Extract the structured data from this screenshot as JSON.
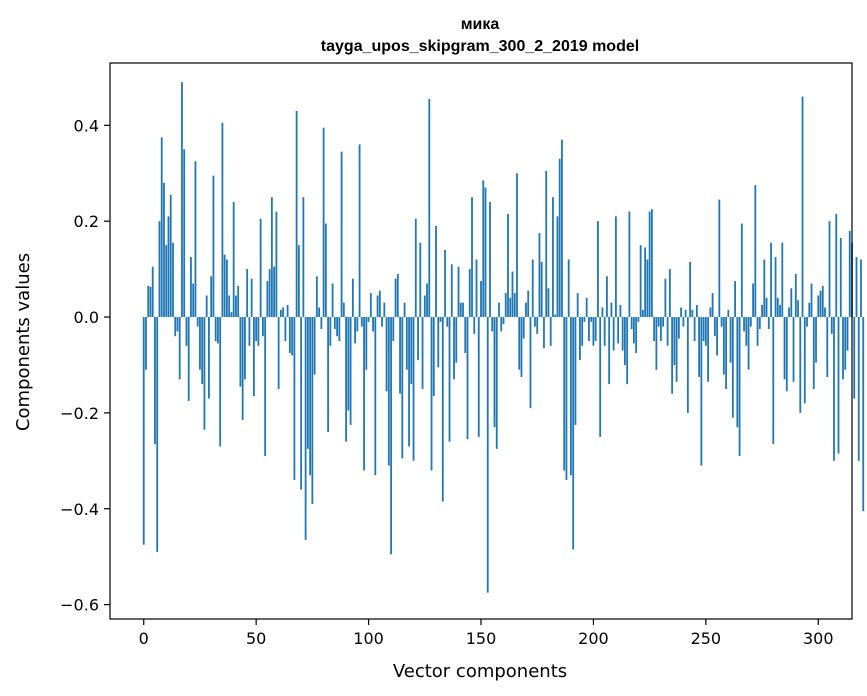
{
  "chart_data": {
    "type": "bar",
    "title": "мика",
    "subtitle": "tayga_upos_skipgram_300_2_2019 model",
    "xlabel": "Vector components",
    "ylabel": "Components values",
    "xlim": [
      -15,
      315
    ],
    "ylim": [
      -0.63,
      0.53
    ],
    "xticks": [
      0,
      50,
      100,
      150,
      200,
      250,
      300
    ],
    "yticks": [
      -0.6,
      -0.4,
      -0.2,
      0.0,
      0.2,
      0.4
    ],
    "ytick_labels": [
      "−0.6",
      "−0.4",
      "−0.2",
      "0.0",
      "0.2",
      "0.4"
    ],
    "xtick_labels": [
      "0",
      "50",
      "100",
      "150",
      "200",
      "250",
      "300"
    ],
    "bar_color": "#1f77b4",
    "values": [
      -0.475,
      -0.11,
      0.065,
      0.063,
      0.105,
      -0.265,
      -0.49,
      0.2,
      0.375,
      0.28,
      0.15,
      0.21,
      0.255,
      0.155,
      -0.04,
      -0.03,
      -0.13,
      0.49,
      0.35,
      -0.06,
      -0.175,
      0.125,
      0.07,
      0.325,
      -0.02,
      -0.11,
      -0.14,
      -0.235,
      0.045,
      -0.17,
      0.085,
      0.295,
      -0.05,
      -0.055,
      -0.27,
      0.405,
      0.13,
      0.12,
      0.045,
      0.01,
      0.24,
      0.045,
      0.065,
      -0.145,
      -0.215,
      -0.13,
      0.1,
      -0.06,
      0.08,
      -0.165,
      -0.05,
      -0.06,
      0.205,
      -0.04,
      -0.29,
      0.075,
      0.1,
      0.25,
      0.105,
      0.22,
      -0.15,
      0.015,
      0.02,
      -0.05,
      0.025,
      -0.075,
      -0.08,
      -0.34,
      0.43,
      0.15,
      -0.36,
      0.25,
      -0.465,
      -0.275,
      -0.33,
      -0.39,
      -0.12,
      0.085,
      0.02,
      -0.025,
      0.395,
      0.195,
      -0.24,
      -0.06,
      0.07,
      -0.025,
      -0.04,
      -0.05,
      0.345,
      0.03,
      -0.26,
      -0.195,
      -0.225,
      0.08,
      -0.055,
      -0.03,
      0.36,
      -0.02,
      -0.32,
      -0.11,
      -0.01,
      0.05,
      -0.03,
      -0.33,
      0.045,
      0.055,
      -0.02,
      0.03,
      -0.155,
      -0.31,
      -0.495,
      -0.05,
      0.08,
      0.09,
      -0.16,
      -0.295,
      0.03,
      -0.11,
      -0.27,
      -0.14,
      -0.3,
      0.205,
      -0.09,
      0.155,
      -0.15,
      0.045,
      0.07,
      0.455,
      -0.32,
      -0.165,
      0.19,
      -0.105,
      -0.01,
      -0.385,
      0.14,
      -0.02,
      -0.26,
      0.11,
      -0.13,
      -0.095,
      0.105,
      0.03,
      0.03,
      -0.075,
      -0.255,
      0.1,
      0.25,
      -0.035,
      0.12,
      -0.25,
      0.075,
      0.285,
      0.27,
      -0.575,
      0.24,
      -0.03,
      -0.23,
      -0.275,
      0.03,
      -0.03,
      -0.015,
      0.05,
      0.215,
      0.04,
      0.095,
      0.05,
      0.3,
      -0.11,
      -0.125,
      -0.045,
      0.03,
      0.055,
      -0.19,
      0.12,
      -0.02,
      -0.035,
      0.175,
      0.115,
      -0.065,
      0.305,
      0.06,
      -0.06,
      0.25,
      0.005,
      0.21,
      0.33,
      0.37,
      -0.32,
      -0.34,
      0.12,
      -0.33,
      -0.485,
      -0.225,
      0.05,
      -0.09,
      -0.06,
      -0.01,
      0.04,
      -0.05,
      -0.01,
      -0.06,
      -0.05,
      0.2,
      -0.25,
      0.02,
      -0.06,
      0.085,
      -0.14,
      0.03,
      -0.07,
      0.21,
      -0.055,
      0.025,
      -0.07,
      -0.1,
      -0.14,
      0.22,
      -0.025,
      -0.055,
      -0.075,
      -0.01,
      0.15,
      0.015,
      0.145,
      0.12,
      0.22,
      0.225,
      -0.05,
      -0.11,
      -0.02,
      -0.05,
      -0.02,
      0.08,
      -0.06,
      0.1,
      -0.16,
      -0.1,
      -0.135,
      -0.045,
      0.02,
      -0.02,
      0.015,
      -0.2,
      0.115,
      0.015,
      -0.05,
      0.025,
      -0.125,
      -0.31,
      -0.05,
      -0.06,
      -0.135,
      0.02,
      0.05,
      -0.04,
      -0.08,
      0.245,
      -0.02,
      -0.12,
      -0.15,
      0.015,
      -0.095,
      -0.21,
      0.075,
      -0.23,
      -0.29,
      0.195,
      -0.03,
      -0.06,
      -0.11,
      -0.02,
      0.07,
      0.275,
      -0.06,
      -0.025,
      0.025,
      0.12,
      0.04,
      -0.025,
      0.155,
      -0.265,
      0.125,
      0.04,
      0.025,
      0.155,
      -0.13,
      -0.155,
      0.02,
      0.06,
      -0.135,
      0.09,
      0.035,
      -0.2,
      0.46,
      -0.18,
      -0.02,
      0.03,
      0.07,
      -0.15,
      -0.095,
      0.045,
      0.055,
      0.065,
      0.02,
      -0.125,
      0.2,
      -0.035,
      -0.3,
      0.215,
      -0.285,
      0.165,
      -0.13,
      -0.11,
      -0.07,
      0.18,
      0.155,
      -0.17,
      0.125,
      -0.3,
      0.12,
      -0.405
    ]
  }
}
